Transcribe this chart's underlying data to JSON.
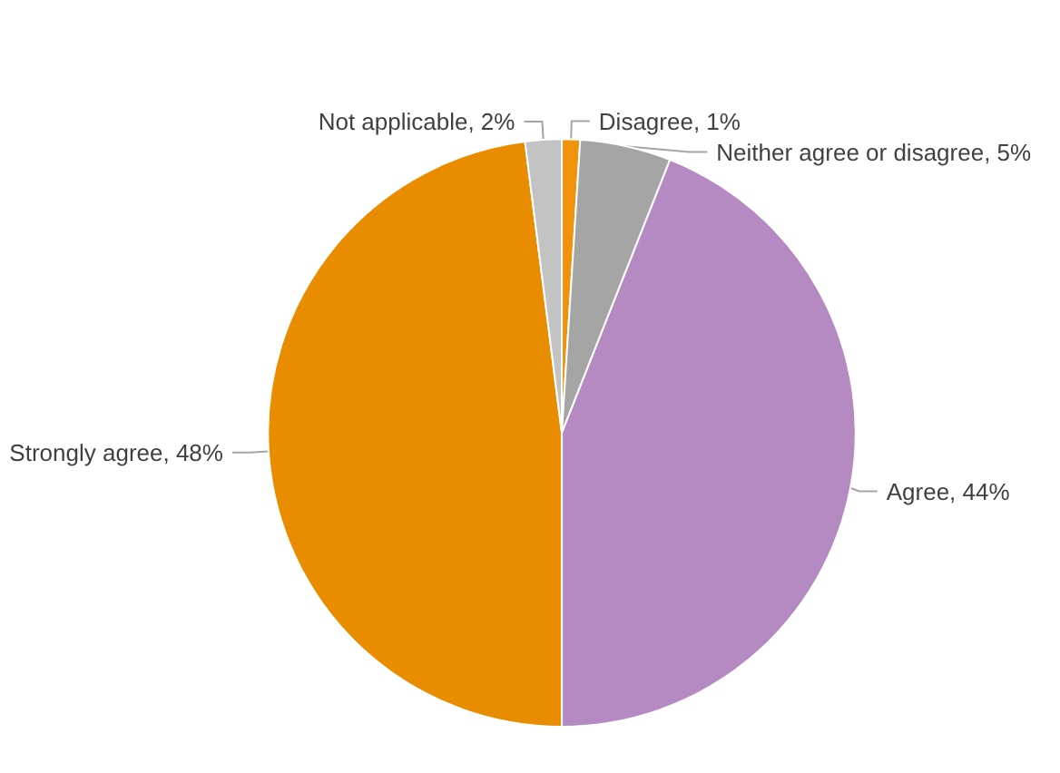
{
  "chart_data": {
    "type": "pie",
    "categories": [
      "Disagree",
      "Neither agree or disagree",
      "Agree",
      "Strongly agree",
      "Not applicable"
    ],
    "values": [
      1,
      5,
      44,
      48,
      2
    ],
    "colors": [
      "#f0920c",
      "#a5a5a5",
      "#b589c1",
      "#e98c00",
      "#c3c3c3"
    ],
    "value_labels": [
      "1%",
      "5%",
      "44%",
      "48%",
      "2%"
    ],
    "legend": false
  }
}
